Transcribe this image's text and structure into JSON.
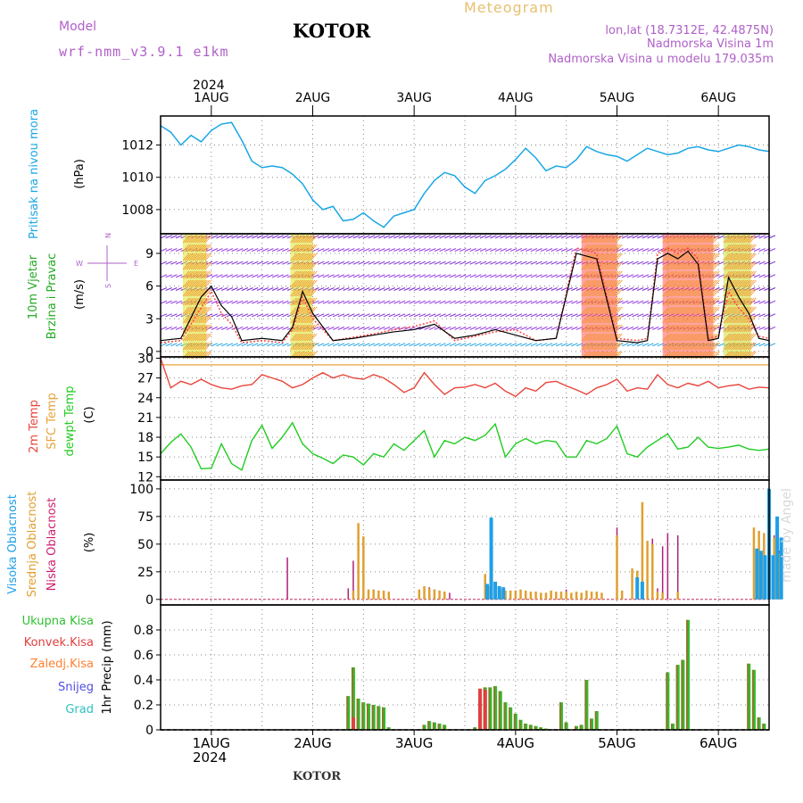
{
  "header": {
    "model_label": "Model",
    "model_name": "wrf-nmm_v3.9.1 e1km",
    "station": "KOTOR",
    "product": "Meteogram",
    "lonlat": "lon,lat (18.7312E, 42.4875N)",
    "elevation": "Nadmorska Visina 1m",
    "model_elevation": "Nadmorska Visina u modelu 179.035m",
    "bottom_station": "KOTOR",
    "watermark": "made by Angel"
  },
  "colors": {
    "pressure": "#1aa6e6",
    "temp2m": "#e8453c",
    "sfc": "#e8a23a",
    "dewpt": "#22cc22",
    "wind_line": "#000000",
    "gust": "#ff4444",
    "high_cloud": "#1f9fe6",
    "mid_cloud": "#e0a030",
    "low_cloud": "#b0207a",
    "precip_total": "#2fbf2f",
    "precip_conv": "#e04040",
    "precip_frz": "#ff8030",
    "snow": "#5050e0",
    "hail": "#30c0c0",
    "grid": "#888888"
  },
  "time_axis": {
    "year": "2024",
    "days": [
      "1AUG",
      "2AUG",
      "3AUG",
      "4AUG",
      "5AUG",
      "6AUG"
    ],
    "range_days": [
      -0.5,
      5.5
    ]
  },
  "chart_data": [
    {
      "id": "pressure",
      "type": "line",
      "ylabel_lines": [
        "Pritisak na nivou mora"
      ],
      "unit": "(hPa)",
      "yticks": [
        1008,
        1010,
        1012
      ],
      "ylim": [
        1006.5,
        1013.8
      ],
      "grid": true,
      "series": [
        {
          "x": [
            -0.5,
            -0.4,
            -0.3,
            -0.2,
            -0.1,
            0.0,
            0.1,
            0.2,
            0.3,
            0.4,
            0.5,
            0.6,
            0.7,
            0.8,
            0.9,
            1.0,
            1.1,
            1.2,
            1.3,
            1.4,
            1.5,
            1.6,
            1.7,
            1.8,
            1.9,
            2.0,
            2.1,
            2.2,
            2.3,
            2.4,
            2.5,
            2.6,
            2.7,
            2.8,
            2.9,
            3.0,
            3.1,
            3.2,
            3.3,
            3.4,
            3.5,
            3.6,
            3.7,
            3.8,
            3.9,
            4.0,
            4.1,
            4.2,
            4.3,
            4.4,
            4.5,
            4.6,
            4.7,
            4.8,
            4.9,
            5.0,
            5.1,
            5.2,
            5.3,
            5.4,
            5.5
          ],
          "values": [
            1013.2,
            1012.8,
            1012.0,
            1012.6,
            1012.2,
            1012.9,
            1013.3,
            1013.4,
            1012.3,
            1011.0,
            1010.6,
            1010.7,
            1010.6,
            1010.2,
            1009.6,
            1008.6,
            1008.0,
            1008.2,
            1007.3,
            1007.4,
            1007.8,
            1007.3,
            1006.9,
            1007.6,
            1007.8,
            1008.0,
            1009.0,
            1009.8,
            1010.3,
            1010.1,
            1009.4,
            1009.0,
            1009.8,
            1010.1,
            1010.5,
            1011.1,
            1011.8,
            1011.2,
            1010.4,
            1010.7,
            1010.6,
            1011.1,
            1011.9,
            1011.6,
            1011.4,
            1011.3,
            1011.0,
            1011.4,
            1011.8,
            1011.6,
            1011.4,
            1011.5,
            1011.8,
            1011.9,
            1011.7,
            1011.6,
            1011.8,
            1012.0,
            1011.9,
            1011.7,
            1011.6
          ]
        }
      ]
    },
    {
      "id": "wind",
      "type": "line",
      "ylabel_lines": [
        "10m Vjetar",
        "Brzina i Pravac"
      ],
      "unit": "(m/s)",
      "compass": {
        "n": "N",
        "e": "E",
        "w": "W",
        "s": "S"
      },
      "yticks": [
        0,
        3,
        6,
        9
      ],
      "ylim": [
        -0.5,
        10.8
      ],
      "grid": true,
      "series": [
        {
          "name_id": "speed",
          "x": [
            -0.5,
            -0.3,
            -0.1,
            0.0,
            0.1,
            0.2,
            0.3,
            0.5,
            0.7,
            0.8,
            0.9,
            1.0,
            1.2,
            1.4,
            1.6,
            1.8,
            2.0,
            2.2,
            2.4,
            2.6,
            2.8,
            3.0,
            3.2,
            3.4,
            3.6,
            3.8,
            4.0,
            4.2,
            4.3,
            4.4,
            4.5,
            4.6,
            4.7,
            4.8,
            4.9,
            5.0,
            5.1,
            5.2,
            5.3,
            5.4,
            5.5
          ],
          "values": [
            1.0,
            1.2,
            5.0,
            6.0,
            4.2,
            3.2,
            1.0,
            1.2,
            1.0,
            2.2,
            5.5,
            3.5,
            1.0,
            1.2,
            1.5,
            1.8,
            2.0,
            2.5,
            1.2,
            1.5,
            2.0,
            1.5,
            1.0,
            1.2,
            9.0,
            8.5,
            1.0,
            0.8,
            1.0,
            8.5,
            9.0,
            8.5,
            9.2,
            8.0,
            1.0,
            1.2,
            6.8,
            5.0,
            3.5,
            1.2,
            1.0
          ]
        },
        {
          "name_id": "gust",
          "x": [
            -0.5,
            -0.3,
            -0.1,
            0.0,
            0.1,
            0.2,
            0.3,
            0.5,
            0.7,
            0.8,
            0.9,
            1.0,
            1.2,
            1.4,
            1.6,
            1.8,
            2.0,
            2.2,
            2.4,
            2.6,
            2.8,
            3.0,
            3.2,
            3.4,
            3.6,
            3.8,
            4.0,
            4.2,
            4.3,
            4.4,
            4.5,
            4.6,
            4.7,
            4.8,
            4.9,
            5.0,
            5.1,
            5.2,
            5.3,
            5.4,
            5.5
          ],
          "values": [
            0.8,
            1.0,
            4.0,
            5.5,
            3.5,
            2.5,
            0.8,
            1.0,
            0.8,
            2.0,
            5.0,
            3.0,
            1.0,
            1.3,
            1.6,
            2.0,
            2.3,
            2.8,
            1.0,
            1.4,
            1.8,
            2.0,
            1.0,
            1.2,
            9.5,
            9.0,
            1.2,
            1.0,
            1.2,
            9.0,
            9.5,
            9.0,
            9.5,
            8.5,
            1.2,
            1.4,
            5.5,
            4.0,
            3.0,
            1.4,
            1.2
          ]
        }
      ]
    },
    {
      "id": "temperature",
      "type": "line",
      "ylabel_lines": [
        "2m Temp",
        "SFC Temp",
        "dewpt Temp"
      ],
      "unit": "(C)",
      "yticks": [
        12,
        15,
        18,
        21,
        24,
        27,
        30
      ],
      "ylim": [
        11.5,
        30.2
      ],
      "grid": true,
      "series": [
        {
          "name_id": "sfc",
          "x": [
            -0.5,
            5.5
          ],
          "values": [
            29.0,
            29.0
          ]
        },
        {
          "name_id": "t2m",
          "x": [
            -0.5,
            -0.4,
            -0.3,
            -0.2,
            -0.1,
            0.0,
            0.1,
            0.2,
            0.3,
            0.4,
            0.5,
            0.6,
            0.7,
            0.8,
            0.9,
            1.0,
            1.1,
            1.2,
            1.3,
            1.4,
            1.5,
            1.6,
            1.7,
            1.8,
            1.9,
            2.0,
            2.1,
            2.2,
            2.3,
            2.4,
            2.5,
            2.6,
            2.7,
            2.8,
            2.9,
            3.0,
            3.1,
            3.2,
            3.3,
            3.4,
            3.5,
            3.6,
            3.7,
            3.8,
            3.9,
            4.0,
            4.1,
            4.2,
            4.3,
            4.4,
            4.5,
            4.6,
            4.7,
            4.8,
            4.9,
            5.0,
            5.1,
            5.2,
            5.3,
            5.4,
            5.5
          ],
          "values": [
            30.0,
            25.5,
            26.5,
            26.0,
            26.8,
            26.0,
            25.5,
            25.3,
            25.8,
            26.0,
            27.5,
            27.0,
            26.5,
            25.5,
            26.0,
            27.0,
            27.8,
            27.0,
            27.5,
            27.0,
            26.8,
            27.5,
            27.0,
            26.0,
            24.8,
            25.5,
            27.8,
            26.0,
            24.5,
            25.5,
            25.6,
            26.0,
            25.5,
            26.2,
            25.0,
            24.2,
            25.5,
            25.0,
            26.3,
            26.5,
            25.8,
            25.2,
            24.5,
            25.5,
            26.0,
            26.8,
            25.0,
            25.5,
            25.3,
            27.5,
            26.0,
            25.5,
            26.2,
            25.8,
            26.5,
            25.5,
            25.8,
            26.0,
            25.3,
            25.6,
            25.5
          ]
        },
        {
          "name_id": "dewpt",
          "x": [
            -0.5,
            -0.4,
            -0.3,
            -0.2,
            -0.1,
            0.0,
            0.1,
            0.2,
            0.3,
            0.4,
            0.5,
            0.6,
            0.7,
            0.8,
            0.9,
            1.0,
            1.1,
            1.2,
            1.3,
            1.4,
            1.5,
            1.6,
            1.7,
            1.8,
            1.9,
            2.0,
            2.1,
            2.2,
            2.3,
            2.4,
            2.5,
            2.6,
            2.7,
            2.8,
            2.9,
            3.0,
            3.1,
            3.2,
            3.3,
            3.4,
            3.5,
            3.6,
            3.7,
            3.8,
            3.9,
            4.0,
            4.1,
            4.2,
            4.3,
            4.4,
            4.5,
            4.6,
            4.7,
            4.8,
            4.9,
            5.0,
            5.1,
            5.2,
            5.3,
            5.4,
            5.5
          ],
          "values": [
            15.5,
            17.2,
            18.5,
            16.5,
            13.2,
            13.3,
            17.0,
            14.0,
            13.0,
            17.5,
            19.8,
            16.3,
            18.0,
            20.2,
            17.0,
            15.5,
            14.8,
            14.0,
            15.3,
            15.0,
            13.8,
            15.5,
            15.0,
            17.0,
            16.0,
            17.5,
            19.0,
            15.0,
            17.5,
            17.0,
            18.0,
            17.5,
            18.3,
            20.0,
            15.0,
            17.0,
            17.8,
            17.0,
            17.5,
            17.3,
            15.0,
            15.0,
            17.5,
            17.0,
            17.8,
            19.7,
            15.5,
            15.0,
            16.5,
            17.5,
            18.5,
            16.2,
            16.5,
            18.0,
            16.5,
            16.3,
            16.5,
            16.8,
            16.2,
            16.0,
            16.2
          ]
        }
      ]
    },
    {
      "id": "clouds",
      "type": "bar",
      "ylabel_lines": [
        "Visoka Oblacnost",
        "Srednja Oblacnost",
        "Niska Oblacnost"
      ],
      "unit": "(%)",
      "yticks": [
        0,
        25,
        50,
        75,
        100
      ],
      "ylim": [
        -5,
        108
      ],
      "grid": true,
      "series": [
        {
          "name_id": "low",
          "x": [
            0.75,
            1.35,
            1.4,
            1.45,
            1.5,
            1.55,
            2.1,
            2.15,
            2.2,
            2.25,
            2.3,
            2.35,
            2.7,
            2.75,
            2.8,
            2.85,
            2.9,
            3.0,
            3.1,
            3.2,
            3.3,
            3.4,
            3.5,
            3.6,
            3.7,
            4.0,
            4.05,
            4.25,
            4.3,
            4.35,
            4.4,
            4.45,
            4.5,
            4.6,
            5.35,
            5.4,
            5.45,
            5.5,
            5.55,
            5.6
          ],
          "values": [
            38,
            10,
            35,
            13,
            9,
            8,
            8,
            11,
            9,
            8,
            7,
            6,
            10,
            8,
            8,
            7,
            7,
            8,
            6,
            7,
            6,
            5,
            9,
            6,
            8,
            65,
            7,
            65,
            9,
            55,
            10,
            48,
            60,
            58,
            7,
            6,
            60,
            60,
            58,
            44
          ]
        },
        {
          "name_id": "mid",
          "x": [
            1.4,
            1.45,
            1.5,
            1.55,
            1.6,
            1.65,
            1.7,
            1.75,
            2.05,
            2.1,
            2.15,
            2.2,
            2.25,
            2.3,
            2.7,
            2.75,
            2.8,
            2.85,
            2.9,
            2.95,
            3.0,
            3.05,
            3.1,
            3.15,
            3.2,
            3.25,
            3.3,
            3.35,
            3.4,
            3.45,
            3.5,
            3.55,
            3.6,
            3.65,
            3.7,
            3.75,
            3.8,
            3.85,
            4.0,
            4.05,
            4.15,
            4.2,
            4.25,
            4.3,
            4.35,
            4.4,
            4.45,
            4.6,
            5.35,
            5.4,
            5.45,
            5.5,
            5.55,
            5.6
          ],
          "values": [
            8,
            69,
            57,
            9,
            9,
            8,
            8,
            7,
            9,
            12,
            10,
            9,
            8,
            7,
            23,
            12,
            10,
            9,
            8,
            8,
            8,
            9,
            8,
            7,
            7,
            6,
            6,
            8,
            7,
            7,
            7,
            6,
            7,
            6,
            8,
            7,
            7,
            6,
            58,
            8,
            28,
            26,
            88,
            53,
            50,
            7,
            6,
            7,
            65,
            62,
            60,
            58,
            56,
            42
          ]
        },
        {
          "name_id": "high",
          "x": [
            2.72,
            2.76,
            2.8,
            2.84,
            2.88,
            4.2,
            4.25,
            5.38,
            5.42,
            5.46,
            5.5,
            5.54,
            5.58,
            5.62
          ],
          "values": [
            14,
            74,
            16,
            12,
            11,
            20,
            16,
            46,
            44,
            40,
            100,
            40,
            75,
            56
          ]
        }
      ]
    },
    {
      "id": "precip",
      "type": "bar",
      "ylabel_lines": [
        "Ukupna Kisa",
        "Konvek.Kisa",
        "Zaledj.Kisa",
        "Snijeg",
        "Grad"
      ],
      "unit": "1hr Precip (mm)",
      "yticks": [
        0,
        0.2,
        0.4,
        0.6,
        0.8
      ],
      "ylim": [
        0,
        1.0
      ],
      "grid": true,
      "series": [
        {
          "name_id": "total",
          "x": [
            1.35,
            1.4,
            1.45,
            1.5,
            1.55,
            1.6,
            1.65,
            1.7,
            1.75,
            2.1,
            2.15,
            2.2,
            2.25,
            2.3,
            2.6,
            2.65,
            2.7,
            2.75,
            2.8,
            2.85,
            2.9,
            2.95,
            3.0,
            3.05,
            3.1,
            3.15,
            3.2,
            3.25,
            3.3,
            3.45,
            3.5,
            3.6,
            3.65,
            3.7,
            3.75,
            3.8,
            4.5,
            4.55,
            4.6,
            4.65,
            4.7,
            5.3,
            5.35,
            5.4,
            5.45,
            5.5,
            5.55,
            5.6,
            5.65
          ],
          "values": [
            0.27,
            0.5,
            0.25,
            0.22,
            0.21,
            0.2,
            0.19,
            0.18,
            0.02,
            0.04,
            0.07,
            0.06,
            0.05,
            0.04,
            0.02,
            0.24,
            0.34,
            0.34,
            0.35,
            0.31,
            0.22,
            0.18,
            0.13,
            0.08,
            0.05,
            0.04,
            0.03,
            0.02,
            0.01,
            0.22,
            0.06,
            0.03,
            0.04,
            0.4,
            0.09,
            0.15,
            0.46,
            0.05,
            0.52,
            0.56,
            0.88,
            0.53,
            0.48,
            0.1,
            0.05,
            0.0,
            0.0,
            0.0,
            0.0
          ]
        },
        {
          "name_id": "conv",
          "x": [
            1.4,
            2.65,
            2.7
          ],
          "values": [
            0.1,
            0.33,
            0.32
          ]
        }
      ]
    }
  ]
}
